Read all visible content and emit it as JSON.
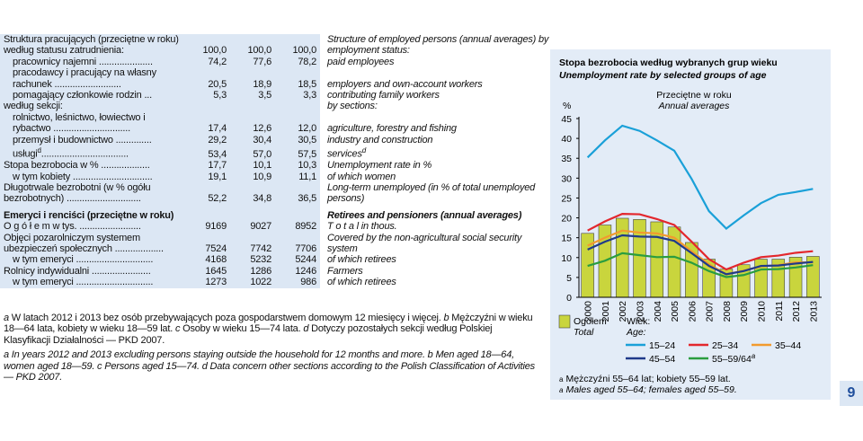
{
  "table": {
    "rows": [
      {
        "label": "Struktura pracujących (przeciętne w roku) według statusu zatrudnienia:",
        "values": [
          "100,0",
          "100,0",
          "100,0"
        ],
        "label_en": "Structure of employed persons (annual averages) by employment status:"
      },
      {
        "label": "pracownicy najemni .....................",
        "values": [
          "74,2",
          "77,6",
          "78,2"
        ],
        "label_en": "paid employees",
        "indent": true
      },
      {
        "label": "pracodawcy i pracujący na własny rachunek ..........................",
        "values": [
          "20,5",
          "18,9",
          "18,5"
        ],
        "label_en": "employers and own-account workers",
        "indent": true
      },
      {
        "label": "pomagający członkowie rodzin ...",
        "values": [
          "5,3",
          "3,5",
          "3,3"
        ],
        "label_en": "contributing family workers",
        "indent": true
      },
      {
        "label": "według sekcji:",
        "label_en": "by sections:"
      },
      {
        "label": "rolnictwo, leśnictwo, łowiectwo i rybactwo ..............................",
        "values": [
          "17,4",
          "12,6",
          "12,0"
        ],
        "label_en": "agriculture, forestry and fishing",
        "indent": true
      },
      {
        "label": "przemysł i budownictwo ..............",
        "values": [
          "29,2",
          "30,4",
          "30,5"
        ],
        "label_en": "industry and construction",
        "indent": true
      },
      {
        "label": "usługi",
        "sup": "d",
        "dots": "..................................",
        "values": [
          "53,4",
          "57,0",
          "57,5"
        ],
        "label_en": "services",
        "indent": true
      },
      {
        "label": "Stopa bezrobocia w % ...................",
        "values": [
          "17,7",
          "10,1",
          "10,3"
        ],
        "label_en": "Unemployment rate in %"
      },
      {
        "label": "w tym kobiety ...............................",
        "values": [
          "19,1",
          "10,9",
          "11,1"
        ],
        "label_en": "of which women",
        "indent": true
      },
      {
        "label": "Długotrwale bezrobotni (w % ogółu bezrobotnych) .............................",
        "values": [
          "52,2",
          "34,8",
          "36,5"
        ],
        "label_en": "Long-term unemployed (in % of total unemployed persons)"
      },
      {
        "label": "Emeryci i renciści (przeciętne w roku)",
        "label_en": "Retirees and pensioners (annual averages)",
        "bold": true
      },
      {
        "label": "O g ó ł e m w tys. ........................",
        "values": [
          "9169",
          "9027",
          "8952"
        ],
        "label_en": "T o t a l in thous."
      },
      {
        "label": "Objęci pozarolniczym systemem ubezpieczeń społecznych ...................",
        "values": [
          "7524",
          "7742",
          "7706"
        ],
        "label_en": "Covered by the non-agricultural social security system"
      },
      {
        "label": "w tym emeryci ..............................",
        "values": [
          "4168",
          "5232",
          "5244"
        ],
        "label_en": "of which retirees",
        "indent": true
      },
      {
        "label": "Rolnicy indywidualni .......................",
        "values": [
          "1645",
          "1286",
          "1246"
        ],
        "label_en": "Farmers"
      },
      {
        "label": "w tym emeryci ..............................",
        "values": [
          "1273",
          "1022",
          "986"
        ],
        "label_en": "of which retirees",
        "indent": true
      }
    ]
  },
  "footnotes": {
    "pl": [
      {
        "mark": "a",
        "text": "W latach 2012 i 2013 bez osób przebywających poza gospodarstwem domowym 12 miesięcy i więcej."
      },
      {
        "mark": "b",
        "text": "Mężczyźni w wieku 18—64 lata, kobiety w wieku 18—59 lat."
      },
      {
        "mark": "c",
        "text": "Osoby w wieku 15—74 lata."
      },
      {
        "mark": "d",
        "text": "Dotyczy pozostałych sekcji według Polskiej Klasyfikacji Działalności — PKD 2007."
      }
    ],
    "en": [
      {
        "mark": "a",
        "text": "In years 2012 and 2013 excluding persons staying outside the household for 12 months and more."
      },
      {
        "mark": "b",
        "text": "Men aged 18—64, women aged 18—59."
      },
      {
        "mark": "c",
        "text": "Persons aged 15—74."
      },
      {
        "mark": "d",
        "text": "Data concern other sections according to the Polish Classification of Activities — PKD 2007."
      }
    ]
  },
  "chart_data": {
    "type": "bar",
    "title": "Stopa bezrobocia według wybranych grup wieku",
    "subtitle": "Unemployment rate by selected groups of age",
    "y_label": "%",
    "annotation": "Przeciętne w roku",
    "annotation_en": "Annual averages",
    "legend_group": "Wiek:",
    "legend_group_en": "Age:",
    "categories": [
      "2000",
      "2001",
      "2002",
      "2003",
      "2004",
      "2005",
      "2006",
      "2007",
      "2008",
      "2009",
      "2010",
      "2011",
      "2012",
      "2013"
    ],
    "ylim": [
      0,
      45
    ],
    "yticks": [
      0,
      5,
      10,
      15,
      20,
      25,
      30,
      35,
      40,
      45
    ],
    "series": [
      {
        "name": "Ogółem",
        "name_en": "Total",
        "type": "bar",
        "color": "#c9d53d",
        "values": [
          16.1,
          18.2,
          19.9,
          19.6,
          19.0,
          17.7,
          13.8,
          9.6,
          7.1,
          8.2,
          9.6,
          9.6,
          10.1,
          10.3
        ]
      },
      {
        "name": "15–24",
        "type": "line",
        "color": "#1aa0d8",
        "values": [
          35.2,
          39.5,
          43.2,
          41.9,
          39.5,
          36.9,
          29.8,
          21.7,
          17.3,
          20.6,
          23.7,
          25.8,
          26.5,
          27.3
        ]
      },
      {
        "name": "25–34",
        "type": "line",
        "color": "#e3272d",
        "values": [
          16.8,
          19.1,
          21.0,
          20.9,
          19.7,
          18.2,
          14.0,
          9.6,
          7.0,
          8.7,
          10.1,
          10.5,
          11.2,
          11.6
        ]
      },
      {
        "name": "35–44",
        "type": "line",
        "color": "#f29a2e",
        "values": [
          13.0,
          15.0,
          16.8,
          16.3,
          16.1,
          15.0,
          11.6,
          8.3,
          5.8,
          6.7,
          7.8,
          8.1,
          8.8,
          8.8
        ]
      },
      {
        "name": "45–54",
        "type": "line",
        "color": "#1f3a8a",
        "values": [
          12.0,
          14.0,
          15.6,
          15.3,
          15.2,
          14.2,
          11.1,
          7.9,
          5.8,
          6.6,
          7.9,
          8.0,
          8.5,
          8.9
        ]
      },
      {
        "name": "55–59/64",
        "name_sup": "a",
        "type": "line",
        "color": "#2a9d3f",
        "values": [
          7.9,
          9.2,
          11.1,
          10.6,
          10.1,
          10.2,
          8.7,
          6.6,
          5.1,
          5.6,
          7.0,
          7.1,
          7.5,
          8.1
        ]
      }
    ],
    "footnote": {
      "mark": "a",
      "text": "Mężczyźni 55–64 lat; kobiety 55–59 lat."
    },
    "footnote_en": {
      "mark": "a",
      "text": "Males aged 55–64; females aged 55–59."
    }
  },
  "page_number": "9"
}
